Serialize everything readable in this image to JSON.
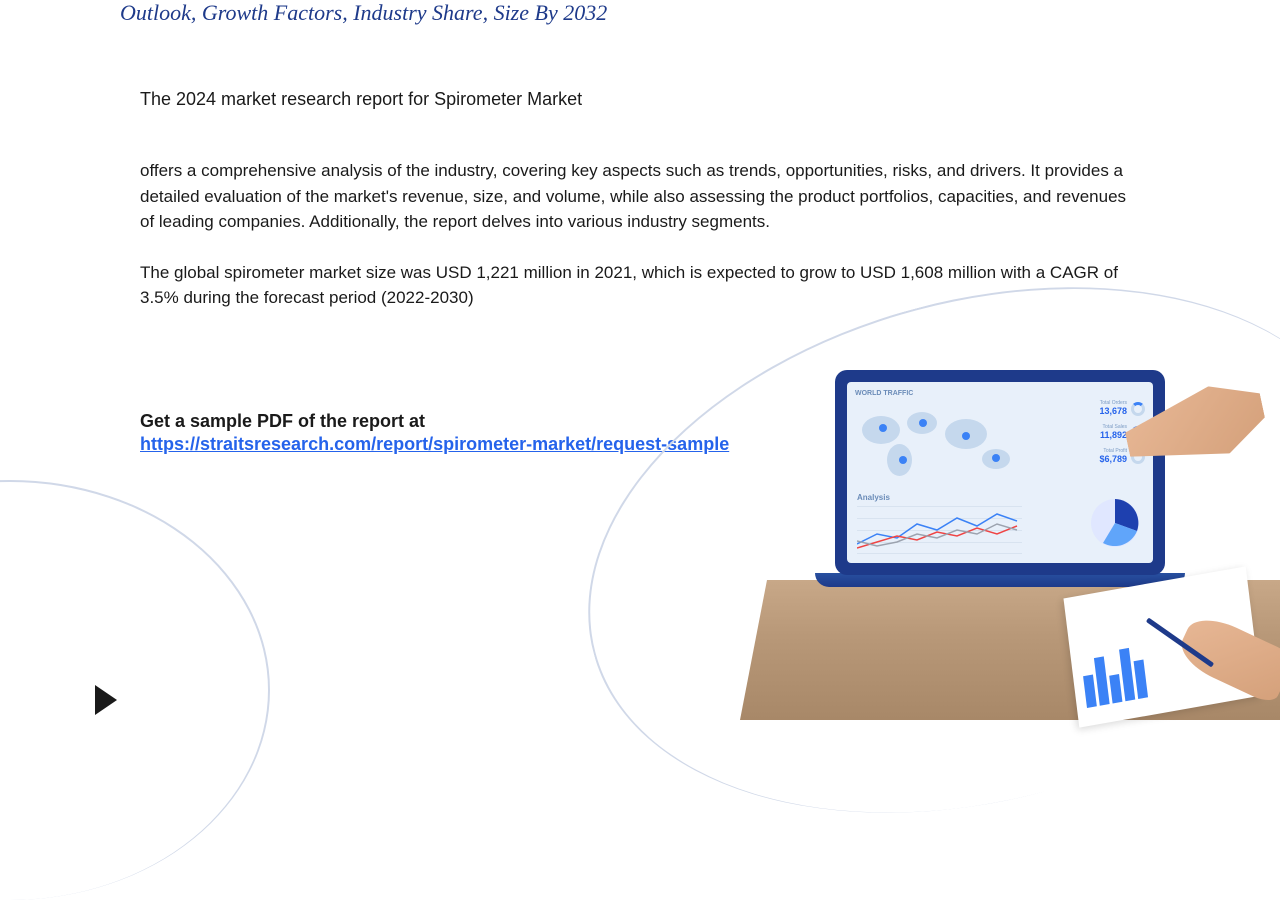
{
  "header": {
    "subtitle": "Outlook, Growth Factors, Industry Share, Size By 2032"
  },
  "content": {
    "intro": "The 2024 market research report for Spirometer Market",
    "description": " offers a comprehensive analysis of the industry, covering key aspects such as trends, opportunities, risks, and drivers. It provides a detailed evaluation of the market's revenue, size, and volume, while also assessing the product portfolios, capacities, and revenues of leading companies. Additionally, the report delves into various industry segments.",
    "market_size": "The global spirometer market size was USD 1,221 million in 2021, which is expected to grow to USD 1,608 million with a CAGR of 3.5% during the forecast period (2022-2030)",
    "sample_label": "Get a sample PDF of the report at",
    "sample_url": "https://straitsresearch.com/report/spirometer-market/request-sample"
  },
  "laptop": {
    "screen_header": "WORLD TRAFFIC",
    "analysis_title": "Analysis",
    "stats": [
      {
        "label": "Total Orders",
        "value": "13,678"
      },
      {
        "label": "Total Sales",
        "value": "11,892"
      },
      {
        "label": "Total Profit",
        "value": "$6,789"
      }
    ],
    "line_chart": {
      "series1_color": "#3b82f6",
      "series2_color": "#ef4444",
      "series3_color": "#9ca3af",
      "points1": "0,38 20,28 40,32 60,18 80,24 100,12 120,20 140,8 160,15",
      "points2": "0,42 20,36 40,30 60,34 80,26 100,30 120,22 140,28 160,20",
      "points3": "0,35 20,40 40,36 60,28 80,32 100,24 120,28 140,18 160,24"
    },
    "pie": {
      "slice1_color": "#1e40af",
      "slice2_color": "#60a5fa",
      "slice3_color": "#e0e7ff"
    },
    "paper_bars": [
      32,
      48,
      28,
      52,
      38
    ]
  },
  "colors": {
    "primary_blue": "#2563eb",
    "dark_blue": "#1e3a8a",
    "text": "#1a1a1a",
    "curve": "#d0d8e8"
  }
}
